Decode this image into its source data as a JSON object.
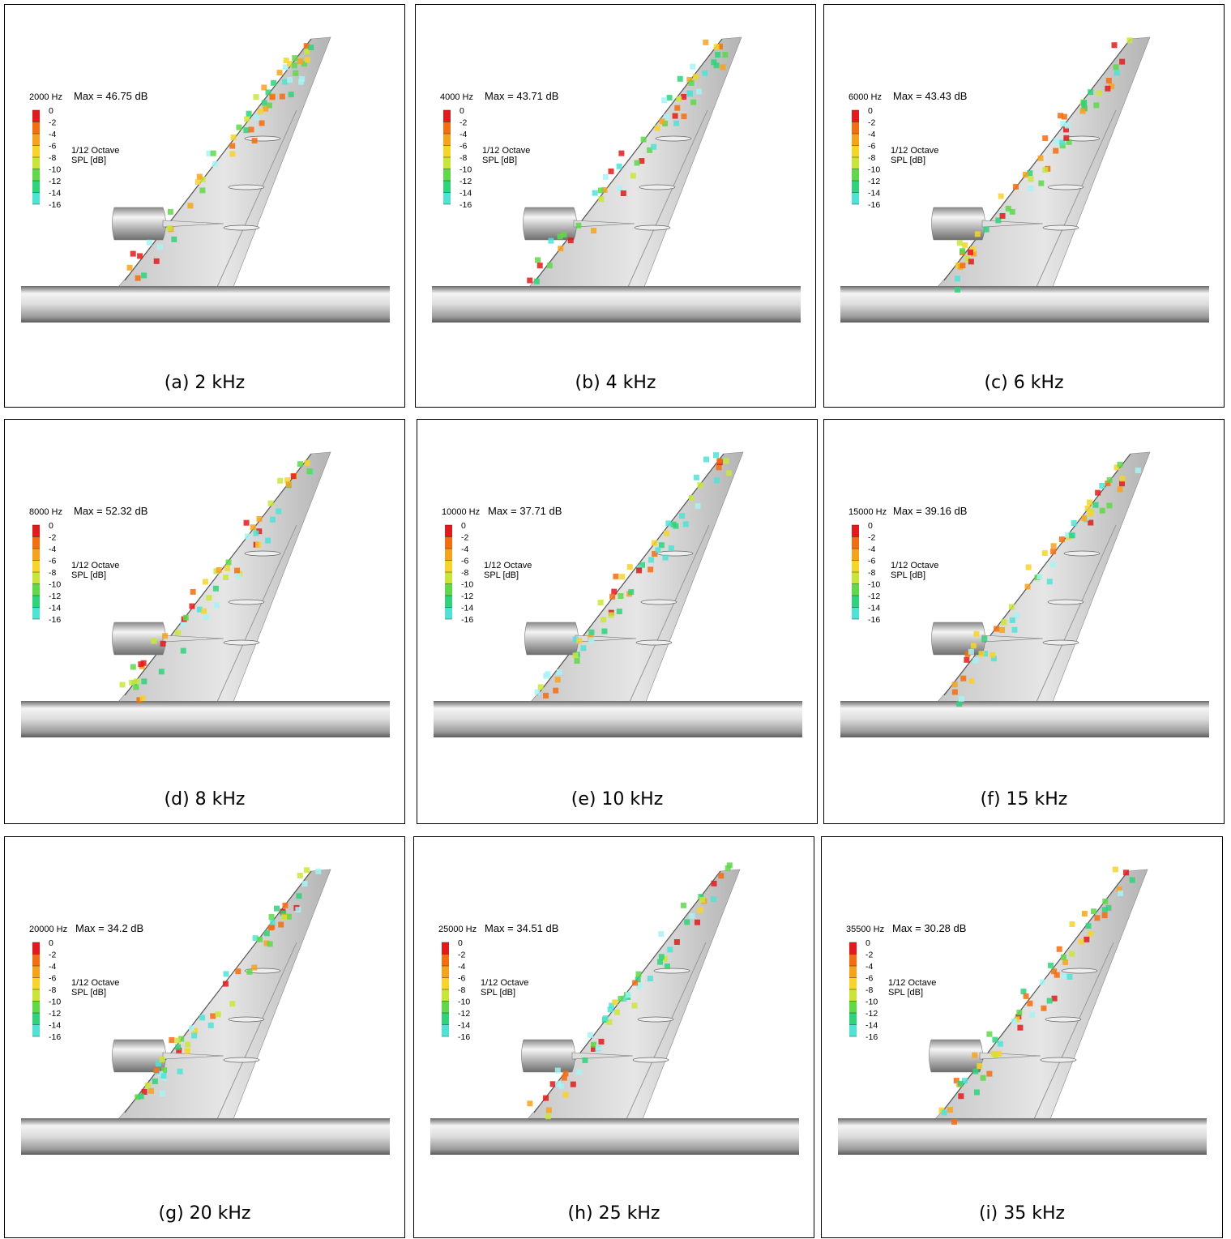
{
  "legend": {
    "ticks": [
      0,
      -2,
      -4,
      -6,
      -8,
      -10,
      -12,
      -14,
      -16
    ],
    "title": "1/12 Octave",
    "unit": "SPL [dB]"
  },
  "panels": [
    {
      "frequency": "2000 Hz",
      "max": "Max = 46.75 dB",
      "caption": "(a) 2 kHz"
    },
    {
      "frequency": "4000 Hz",
      "max": "Max = 43.71 dB",
      "caption": "(b) 4 kHz"
    },
    {
      "frequency": "6000 Hz",
      "max": "Max = 43.43 dB",
      "caption": "(c) 6 kHz"
    },
    {
      "frequency": "8000 Hz",
      "max": "Max = 52.32 dB",
      "caption": "(d) 8 kHz"
    },
    {
      "frequency": "10000 Hz",
      "max": "Max = 37.71 dB",
      "caption": "(e) 10 kHz"
    },
    {
      "frequency": "15000 Hz",
      "max": "Max = 39.16 dB",
      "caption": "(f) 15 kHz"
    },
    {
      "frequency": "20000 Hz",
      "max": "Max = 34.2 dB",
      "caption": "(g) 20 kHz"
    },
    {
      "frequency": "25000 Hz",
      "max": "Max = 34.51 dB",
      "caption": "(h) 25 kHz"
    },
    {
      "frequency": "35500 Hz",
      "max": "Max = 30.28 dB",
      "caption": "(i) 35 kHz"
    }
  ]
}
